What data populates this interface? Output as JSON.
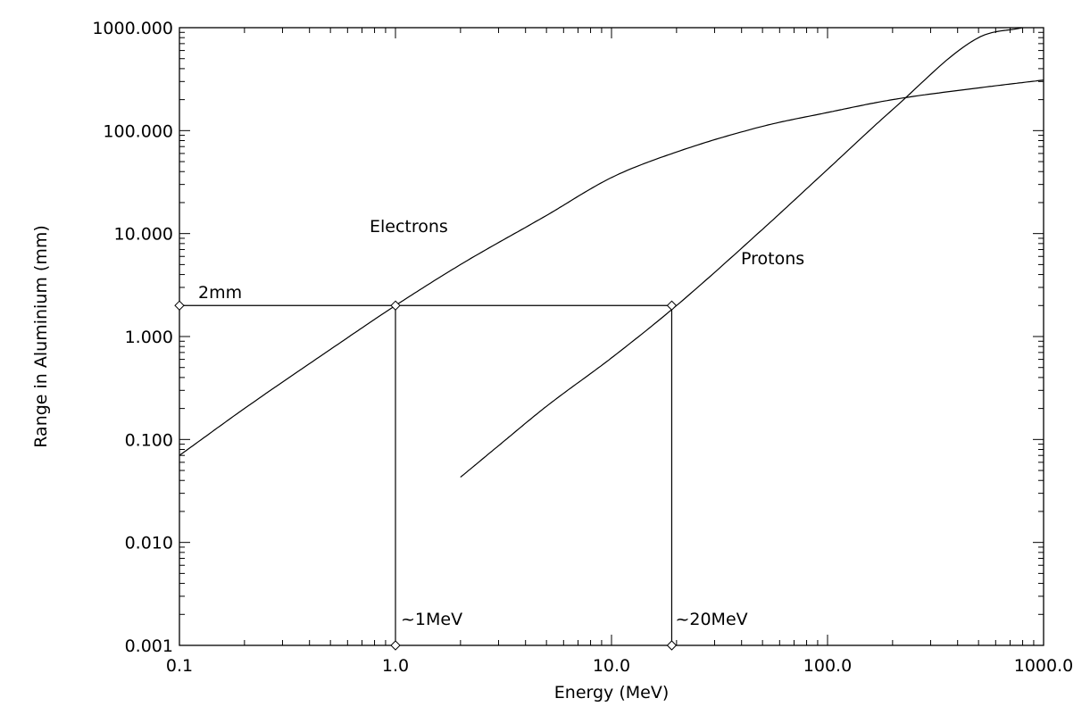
{
  "chart_data": {
    "type": "line",
    "title": "",
    "xlabel": "Energy (MeV)",
    "ylabel": "Range in Aluminium (mm)",
    "x_scale": "log",
    "y_scale": "log",
    "xlim": [
      0.1,
      1000
    ],
    "ylim": [
      0.001,
      1000
    ],
    "grid": false,
    "legend": "none",
    "x_tick_labels": [
      "0.1",
      "1.0",
      "10.0",
      "100.0",
      "1000.0"
    ],
    "y_tick_labels": [
      "0.001",
      "0.010",
      "0.100",
      "1.000",
      "10.000",
      "100.000",
      "1000.000"
    ],
    "series": [
      {
        "label": "Electrons",
        "x": [
          0.1,
          0.2,
          0.5,
          1,
          2,
          5,
          10,
          20,
          50,
          100,
          200,
          500,
          1000
        ],
        "y": [
          0.07,
          0.2,
          0.75,
          2.0,
          5.0,
          15,
          35,
          62,
          110,
          150,
          200,
          260,
          310
        ]
      },
      {
        "label": "Protons",
        "x": [
          2,
          3,
          5,
          10,
          20,
          50,
          100,
          200,
          500,
          800
        ],
        "y": [
          0.043,
          0.087,
          0.21,
          0.62,
          2.0,
          11,
          42,
          160,
          800,
          1000
        ]
      }
    ],
    "annotations": {
      "horizontal": {
        "text": "2mm",
        "y": 2,
        "x_from": 0.1,
        "x_to": 19
      },
      "verticals": [
        {
          "text": "~1MeV",
          "x": 1.0,
          "y_from": 0.001,
          "y_to": 2
        },
        {
          "text": "~20MeV",
          "x": 19,
          "y_from": 0.001,
          "y_to": 2
        }
      ]
    }
  }
}
